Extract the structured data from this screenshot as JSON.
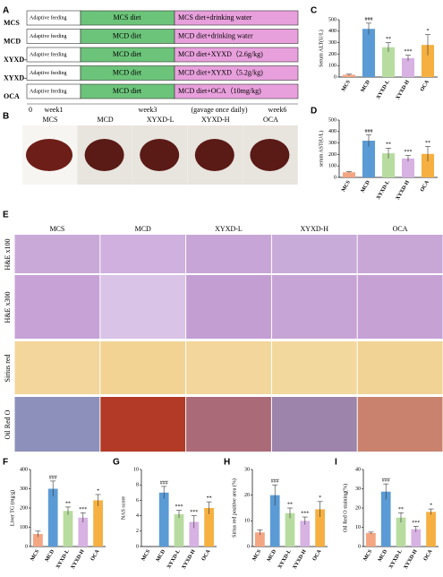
{
  "panel_labels": [
    "A",
    "B",
    "C",
    "D",
    "E",
    "F",
    "G",
    "H",
    "I"
  ],
  "timeline": {
    "rows": [
      {
        "group": "MCS",
        "adaptive": "Adaptive feeding",
        "diet": "MCS diet",
        "treatment": "MCS diet+drinking water"
      },
      {
        "group": "MCD",
        "adaptive": "Adaptive feeding",
        "diet": "MCD diet",
        "treatment": "MCD diet+drinking water"
      },
      {
        "group": "XYXD-L",
        "adaptive": "Adaptive feeding",
        "diet": "MCD diet",
        "treatment": "MCD diet+XYXD（2.6g/kg)"
      },
      {
        "group": "XYXD-H",
        "adaptive": "Adaptive feeding",
        "diet": "MCD diet",
        "treatment": "MCD diet+XYXD（5.2g/kg)"
      },
      {
        "group": "OCA",
        "adaptive": "Adaptive feeding",
        "diet": "MCD diet",
        "treatment": "MCD diet+OCA（10mg/kg)"
      }
    ],
    "axis": [
      "0",
      "week1",
      "week3",
      "(gavage once daily)",
      "week6"
    ]
  },
  "liver_photos": {
    "labels": [
      "MCS",
      "MCD",
      "XYXD-L",
      "XYXD-H",
      "OCA"
    ]
  },
  "histology": {
    "columns": [
      "MCS",
      "MCD",
      "XYXD-L",
      "XYXD-H",
      "OCA"
    ],
    "rows": [
      "H&E x100",
      "H&E x300",
      "Sirius red",
      "Oil Red O"
    ]
  },
  "chart_data": [
    {
      "type": "bar",
      "y_label": "Serum ALT(U/L)",
      "categories": [
        "MCS",
        "MCD",
        "XYXD-L",
        "XYXD-H",
        "OCA"
      ],
      "colors": [
        "#f4a582",
        "#5b9bd5",
        "#b8dca0",
        "#d7b2e3",
        "#f5b041"
      ],
      "values": [
        20,
        420,
        260,
        165,
        280
      ],
      "errors": [
        5,
        50,
        40,
        25,
        90
      ],
      "annotations": [
        null,
        "###",
        "**",
        "***",
        "*"
      ],
      "ylim": [
        0,
        500
      ],
      "yticks": [
        0,
        100,
        200,
        300,
        400,
        500
      ]
    },
    {
      "type": "bar",
      "y_label": "serum AST(U/L)",
      "categories": [
        "MCS",
        "MCD",
        "XYXD-L",
        "XYXD-H",
        "OCA"
      ],
      "colors": [
        "#f4a582",
        "#5b9bd5",
        "#b8dca0",
        "#d7b2e3",
        "#f5b041"
      ],
      "values": [
        45,
        320,
        210,
        165,
        205
      ],
      "errors": [
        5,
        50,
        45,
        25,
        65
      ],
      "annotations": [
        null,
        "###",
        "**",
        "***",
        "**"
      ],
      "ylim": [
        0,
        500
      ],
      "yticks": [
        0,
        100,
        200,
        300,
        400,
        500
      ]
    },
    {
      "type": "bar",
      "y_label": "Liver TG (mg/g)",
      "categories": [
        "MCS",
        "MCD",
        "XYXD-L",
        "XYXD-H",
        "OCA"
      ],
      "colors": [
        "#f4a582",
        "#5b9bd5",
        "#b8dca0",
        "#d7b2e3",
        "#f5b041"
      ],
      "values": [
        65,
        300,
        185,
        150,
        240
      ],
      "errors": [
        15,
        40,
        20,
        25,
        30
      ],
      "annotations": [
        null,
        "###",
        "**",
        "***",
        "*"
      ],
      "ylim": [
        0,
        400
      ],
      "yticks": [
        0,
        100,
        200,
        300,
        400
      ]
    },
    {
      "type": "bar",
      "y_label": "NAS score",
      "categories": [
        "MCS",
        "MCD",
        "XYXD-L",
        "XYXD-H",
        "OCA"
      ],
      "colors": [
        "#f4a582",
        "#5b9bd5",
        "#b8dca0",
        "#d7b2e3",
        "#f5b041"
      ],
      "values": [
        0,
        7,
        4.2,
        3.2,
        5
      ],
      "errors": [
        0,
        0.8,
        0.5,
        0.8,
        0.8
      ],
      "annotations": [
        null,
        "###",
        "***",
        "***",
        "**"
      ],
      "ylim": [
        0,
        10
      ],
      "yticks": [
        0,
        2,
        4,
        6,
        8,
        10
      ]
    },
    {
      "type": "bar",
      "y_label": "Sirius red positive area (%)",
      "categories": [
        "MCS",
        "MCD",
        "XYXD-L",
        "XYXD-H",
        "OCA"
      ],
      "colors": [
        "#f4a582",
        "#5b9bd5",
        "#b8dca0",
        "#d7b2e3",
        "#f5b041"
      ],
      "values": [
        5.5,
        20,
        13,
        10,
        14.5
      ],
      "errors": [
        1,
        4,
        2,
        1.5,
        3
      ],
      "annotations": [
        null,
        "###",
        "**",
        "***",
        "*"
      ],
      "ylim": [
        0,
        30
      ],
      "yticks": [
        0,
        10,
        20,
        30
      ]
    },
    {
      "type": "bar",
      "y_label": "Oil Red O staining(%)",
      "categories": [
        "MCS",
        "MCD",
        "XYXD-L",
        "XYXD-H",
        "OCA"
      ],
      "colors": [
        "#f4a582",
        "#5b9bd5",
        "#b8dca0",
        "#d7b2e3",
        "#f5b041"
      ],
      "values": [
        7,
        28.5,
        15,
        9,
        18
      ],
      "errors": [
        0.5,
        4,
        2.5,
        1.5,
        1.5
      ],
      "annotations": [
        null,
        "###",
        "**",
        "***",
        "*"
      ],
      "ylim": [
        0,
        40
      ],
      "yticks": [
        0,
        10,
        20,
        30,
        40
      ]
    }
  ]
}
